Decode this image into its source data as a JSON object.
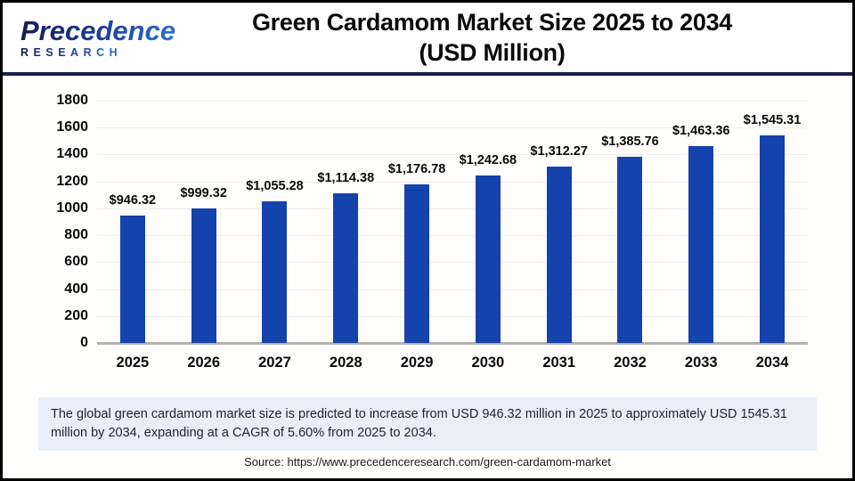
{
  "logo": {
    "name": "Precedence",
    "subtext": "RESEARCH"
  },
  "header": {
    "title_line1": "Green Cardamom Market Size 2025 to 2034",
    "title_line2": "(USD Million)"
  },
  "chart_data": {
    "type": "bar",
    "title": "Green Cardamom Market Size 2025 to 2034 (USD Million)",
    "categories": [
      "2025",
      "2026",
      "2027",
      "2028",
      "2029",
      "2030",
      "2031",
      "2032",
      "2033",
      "2034"
    ],
    "values": [
      946.32,
      999.32,
      1055.28,
      1114.38,
      1176.78,
      1242.68,
      1312.27,
      1385.76,
      1463.36,
      1545.31
    ],
    "value_labels": [
      "$946.32",
      "$999.32",
      "$1,055.28",
      "$1,114.38",
      "$1,176.78",
      "$1,242.68",
      "$1,312.27",
      "$1,385.76",
      "$1,463.36",
      "$1,545.31"
    ],
    "xlabel": "",
    "ylabel": "",
    "ylim": [
      0,
      1800
    ],
    "ytick_step": 200,
    "yticks": [
      0,
      200,
      400,
      600,
      800,
      1000,
      1200,
      1400,
      1600,
      1800
    ],
    "grid": true,
    "legend": false,
    "bar_color": "#1543ae"
  },
  "summary": {
    "text": "The global green cardamom market size is predicted to increase from USD 946.32 million in 2025 to approximately USD 1545.31 million by 2034, expanding at a CAGR of 5.60% from 2025 to 2034."
  },
  "source": {
    "text": "Source: https://www.precedenceresearch.com/green-cardamom-market"
  },
  "colors": {
    "bar": "#1543ae",
    "header_rule": "#191d4d",
    "summary_bg": "#e9eff9",
    "gridline": "#efefef",
    "baseline": "#b3b3b3"
  }
}
